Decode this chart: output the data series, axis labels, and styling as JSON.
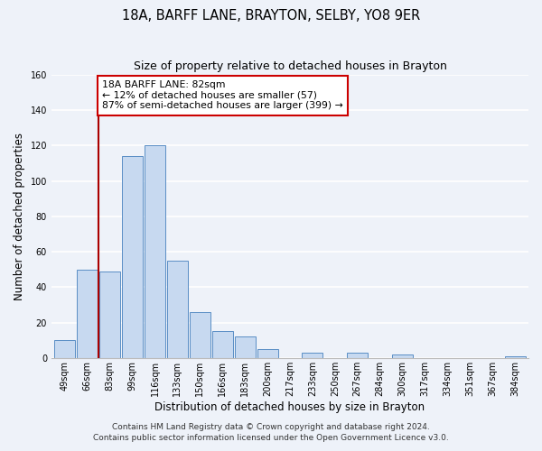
{
  "title": "18A, BARFF LANE, BRAYTON, SELBY, YO8 9ER",
  "subtitle": "Size of property relative to detached houses in Brayton",
  "xlabel": "Distribution of detached houses by size in Brayton",
  "ylabel": "Number of detached properties",
  "bar_labels": [
    "49sqm",
    "66sqm",
    "83sqm",
    "99sqm",
    "116sqm",
    "133sqm",
    "150sqm",
    "166sqm",
    "183sqm",
    "200sqm",
    "217sqm",
    "233sqm",
    "250sqm",
    "267sqm",
    "284sqm",
    "300sqm",
    "317sqm",
    "334sqm",
    "351sqm",
    "367sqm",
    "384sqm"
  ],
  "bar_values": [
    10,
    50,
    49,
    114,
    120,
    55,
    26,
    15,
    12,
    5,
    0,
    3,
    0,
    3,
    0,
    2,
    0,
    0,
    0,
    0,
    1
  ],
  "bar_color": "#c7d9f0",
  "bar_edge_color": "#5a8ec5",
  "property_line_x_label": "83sqm",
  "property_line_color": "#aa0000",
  "annotation_text": "18A BARFF LANE: 82sqm\n← 12% of detached houses are smaller (57)\n87% of semi-detached houses are larger (399) →",
  "annotation_box_color": "#ffffff",
  "annotation_box_edge_color": "#cc0000",
  "footer_line1": "Contains HM Land Registry data © Crown copyright and database right 2024.",
  "footer_line2": "Contains public sector information licensed under the Open Government Licence v3.0.",
  "ylim": [
    0,
    160
  ],
  "yticks": [
    0,
    20,
    40,
    60,
    80,
    100,
    120,
    140,
    160
  ],
  "background_color": "#eef2f9",
  "grid_color": "#ffffff",
  "title_fontsize": 10.5,
  "subtitle_fontsize": 9,
  "axis_label_fontsize": 8.5,
  "tick_fontsize": 7,
  "footer_fontsize": 6.5,
  "annotation_fontsize": 7.8
}
